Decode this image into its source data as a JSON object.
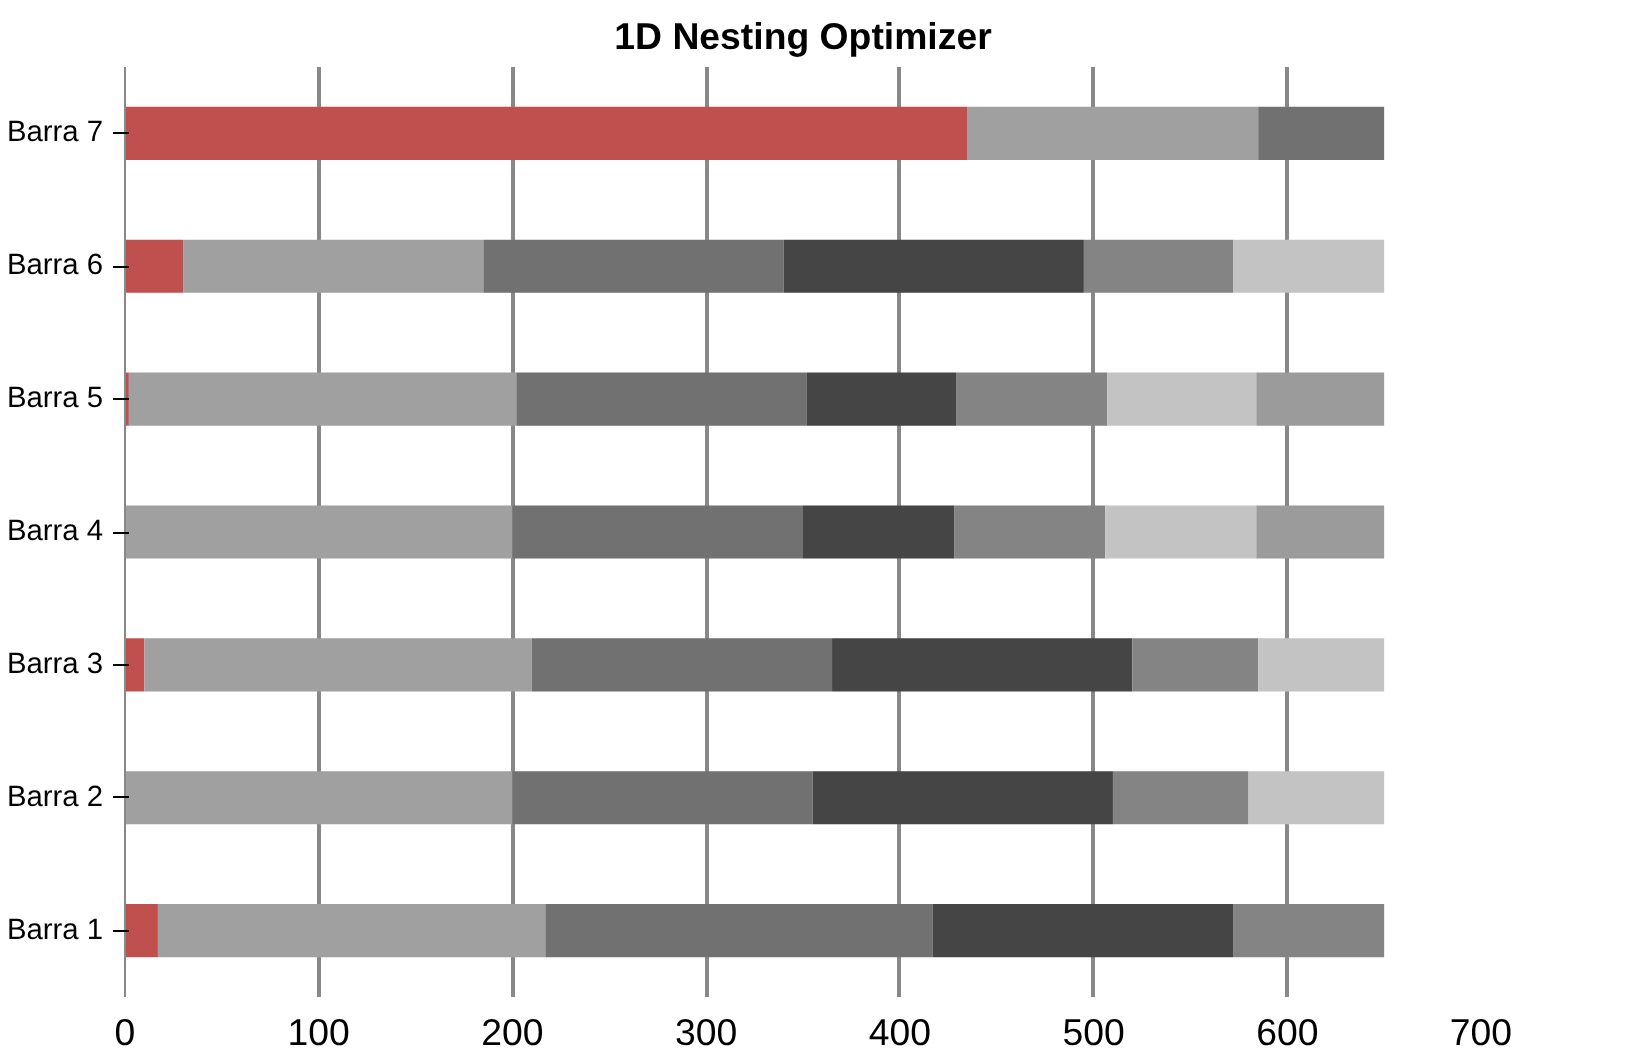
{
  "chart_data": {
    "type": "bar",
    "orientation": "horizontal",
    "stacked": true,
    "title": "1D Nesting Optimizer",
    "categories": [
      "Barra 7",
      "Barra 6",
      "Barra 5",
      "Barra 4",
      "Barra 3",
      "Barra 2",
      "Barra 1"
    ],
    "series": [
      {
        "color": "#c0504d",
        "values": [
          435,
          30,
          2,
          0,
          10,
          0,
          17
        ]
      },
      {
        "color": "#a0a0a0",
        "values": [
          150,
          155,
          200,
          200,
          200,
          200,
          200
        ]
      },
      {
        "color": "#717171",
        "values": [
          65,
          155,
          150,
          150,
          155,
          155,
          200
        ]
      },
      {
        "color": "#454545",
        "values": [
          null,
          155,
          77,
          78,
          155,
          155,
          155
        ]
      },
      {
        "color": "#848484",
        "values": [
          null,
          77,
          78,
          78,
          65,
          70,
          78
        ]
      },
      {
        "color": "#c3c3c3",
        "values": [
          null,
          78,
          77,
          78,
          65,
          70,
          null
        ]
      },
      {
        "color": "#9b9b9b",
        "values": [
          null,
          null,
          66,
          66,
          null,
          null,
          null
        ]
      }
    ],
    "xlim": [
      0,
      700
    ],
    "xticks": [
      0,
      100,
      200,
      300,
      400,
      500,
      600,
      700
    ],
    "grid": "x"
  }
}
